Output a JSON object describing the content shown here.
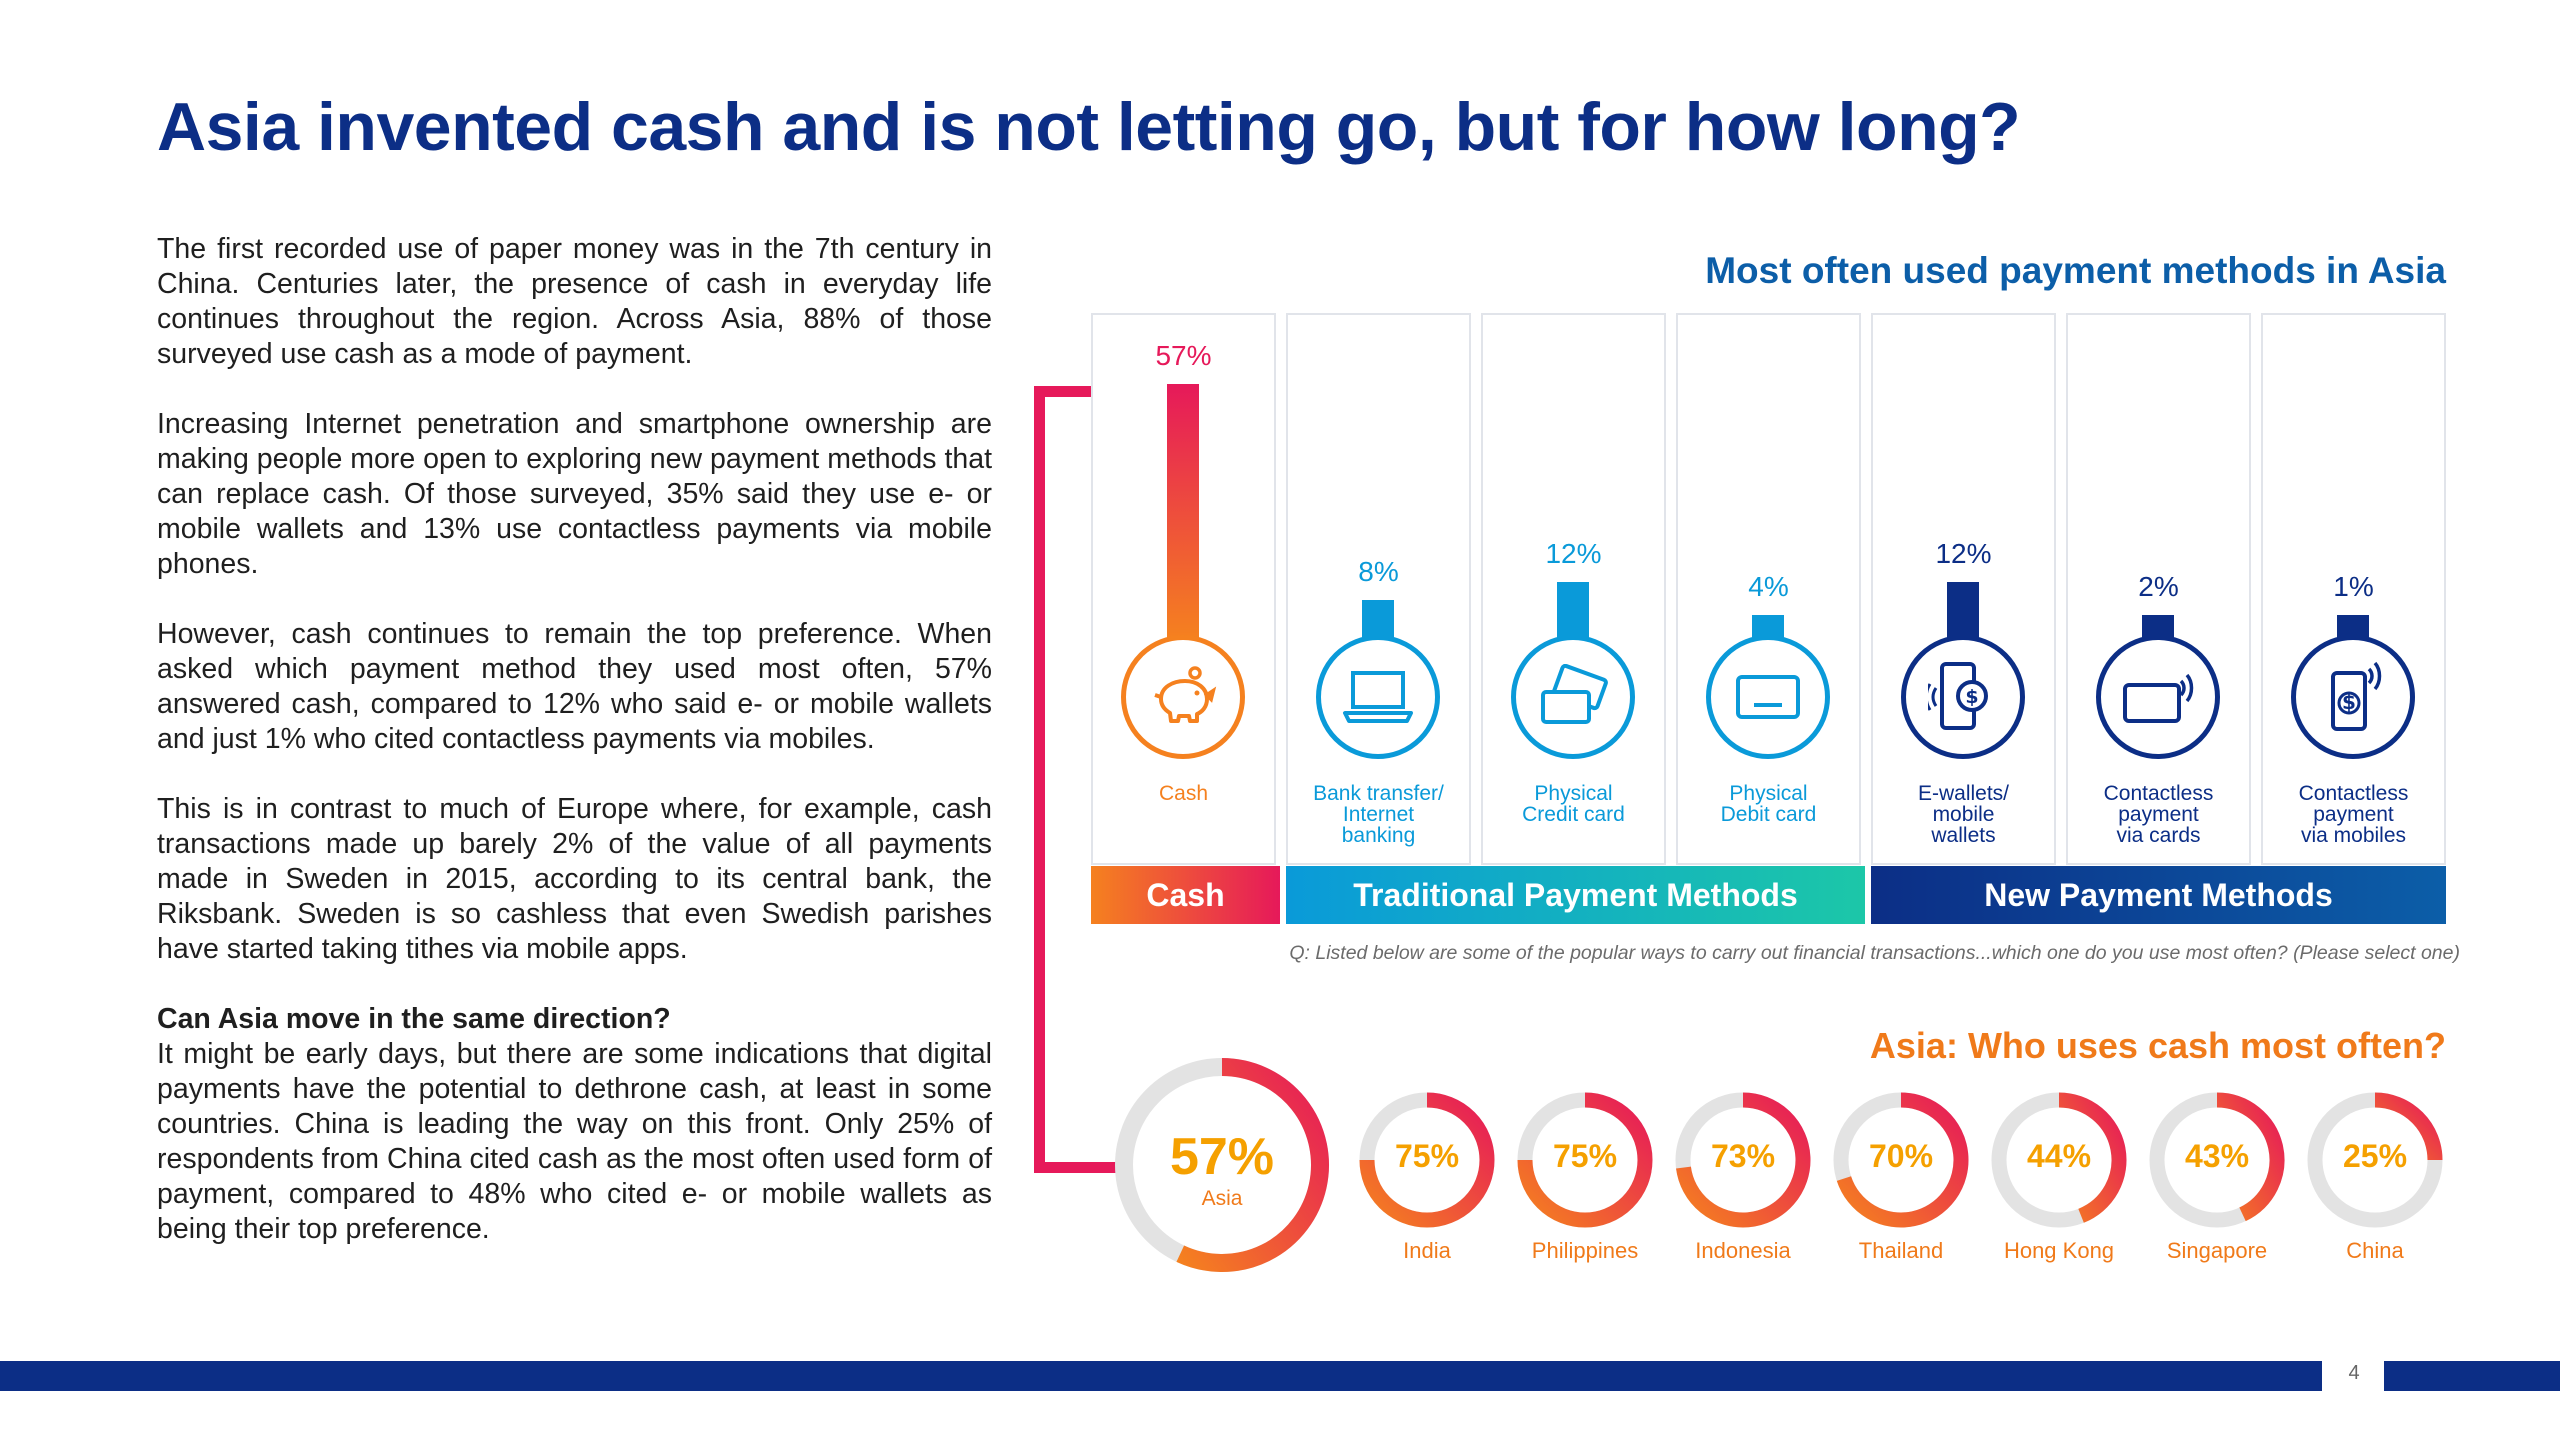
{
  "title": "Asia invented cash and is not letting go, but for how long?",
  "body": {
    "p1": "The first recorded use of paper money was in the 7th century in China. Centuries later, the presence of cash in everyday life continues throughout the region. Across Asia, 88% of those surveyed use cash as a mode of payment.",
    "p2": "Increasing Internet penetration and smartphone ownership are making people more open to exploring new payment methods that can replace cash. Of those surveyed, 35% said they use e- or mobile wallets and 13% use contactless payments via mobile phones.",
    "p3": "However, cash continues to remain the top preference. When asked which payment method they used most often, 57% answered cash, compared to 12% who said e- or mobile wallets and just 1% who cited contactless payments via mobiles.",
    "p4": "This is in contrast to much of Europe where, for example, cash transactions made up barely 2% of the value of all payments made in Sweden in 2015, according to its central bank, the Riksbank. Sweden is so cashless that even Swedish parishes have started taking tithes via mobile apps.",
    "question_heading": "Can Asia move in the same direction?",
    "p5": "It might be early days, but there are some indications that digital payments have the potential to dethrone cash, at least in some countries. China is leading the way on this front. Only 25% of respondents from China cited cash as the most often used form of payment, compared to 48% who cited e- or mobile wallets as being their top preference."
  },
  "chart_data": [
    {
      "type": "bar",
      "title": "Most often used payment methods in Asia",
      "categories": [
        "Cash",
        "Bank transfer/\nInternet\nbanking",
        "Physical\nCredit card",
        "Physical\nDebit card",
        "E-wallets/\nmobile\nwallets",
        "Contactless\npayment\nvia cards",
        "Contactless\npayment\nvia mobiles"
      ],
      "values": [
        57,
        8,
        12,
        4,
        12,
        2,
        1
      ],
      "value_labels": [
        "57%",
        "8%",
        "12%",
        "4%",
        "12%",
        "2%",
        "1%"
      ],
      "icons": [
        "piggy-bank-icon",
        "laptop-icon",
        "credit-cards-icon",
        "debit-card-icon",
        "mobile-wallet-icon",
        "contactless-card-icon",
        "contactless-mobile-icon"
      ],
      "colors": [
        "#f5811f",
        "#0a9ad9",
        "#0a9ad9",
        "#0a9ad9",
        "#0c2e86",
        "#0c2e86",
        "#0c2e86"
      ],
      "groups": [
        {
          "name": "Cash",
          "span": 1
        },
        {
          "name": "Traditional Payment Methods",
          "span": 3
        },
        {
          "name": "New Payment Methods",
          "span": 3
        }
      ],
      "note": "Q: Listed below are some of the popular ways to carry out financial transactions...which one do you use most often? (Please select one)"
    },
    {
      "type": "pie",
      "title": "Asia: Who uses cash most often?",
      "headline": {
        "label": "Asia",
        "value": 57,
        "value_label": "57%"
      },
      "categories": [
        "India",
        "Philippines",
        "Indonesia",
        "Thailand",
        "Hong Kong",
        "Singapore",
        "China"
      ],
      "values": [
        75,
        75,
        73,
        70,
        44,
        43,
        25
      ],
      "value_labels": [
        "75%",
        "75%",
        "73%",
        "70%",
        "44%",
        "43%",
        "25%"
      ]
    }
  ],
  "page_number": "4",
  "colors": {
    "navy": "#0c2e86",
    "blue": "#0a9ad9",
    "orange": "#f5811f",
    "pink": "#e6195a",
    "teal": "#1cc7a8",
    "grey_track": "#e3e3e3"
  }
}
